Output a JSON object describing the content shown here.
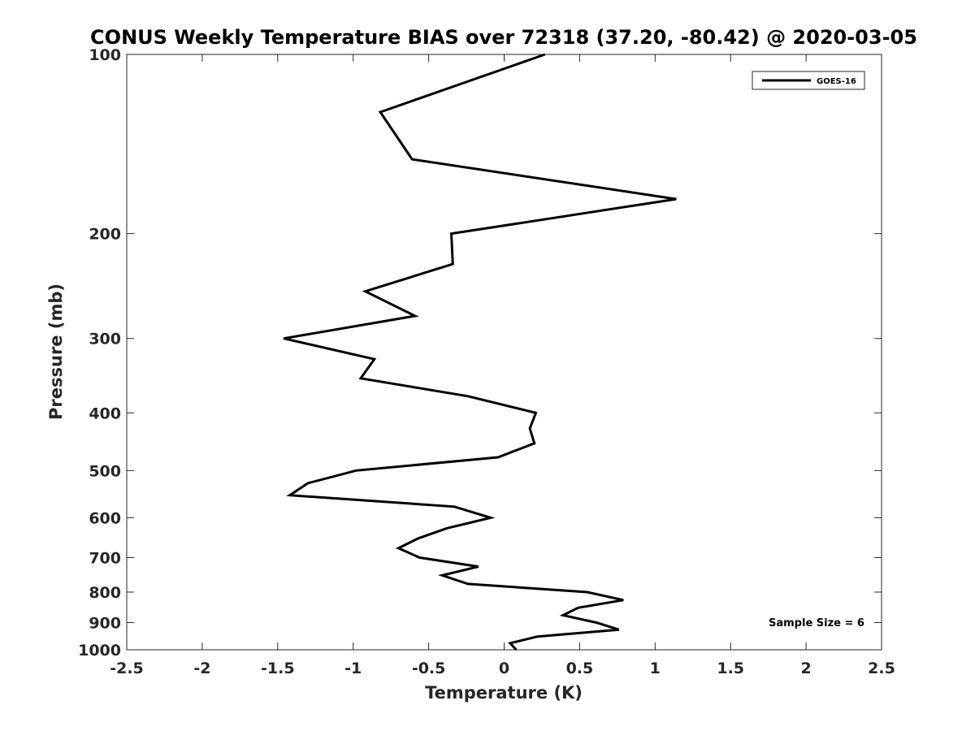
{
  "chart_data": {
    "type": "line",
    "title": "CONUS Weekly Temperature BIAS over 72318 (37.20, -80.42) @ 2020-03-05",
    "xlabel": "Temperature (K)",
    "ylabel": "Pressure (mb)",
    "xlim": [
      -2.5,
      2.5
    ],
    "ylim": [
      1000,
      100
    ],
    "yscale": "log",
    "xticks": [
      -2.5,
      -2,
      -1.5,
      -1,
      -0.5,
      0,
      0.5,
      1,
      1.5,
      2,
      2.5
    ],
    "xtick_labels": [
      "-2.5",
      "-2",
      "-1.5",
      "-1",
      "-0.5",
      "0",
      "0.5",
      "1",
      "1.5",
      "2",
      "2.5"
    ],
    "yticks": [
      100,
      200,
      300,
      400,
      500,
      600,
      700,
      800,
      900,
      1000
    ],
    "ytick_labels": [
      "100",
      "200",
      "300",
      "400",
      "500",
      "600",
      "700",
      "800",
      "900",
      "1000"
    ],
    "grid": false,
    "legend_position": "top-right",
    "series": [
      {
        "name": "GOES-16",
        "color": "#000000",
        "points": [
          {
            "x": 0.27,
            "p": 100
          },
          {
            "x": -0.82,
            "p": 125
          },
          {
            "x": -0.61,
            "p": 150
          },
          {
            "x": 1.14,
            "p": 175
          },
          {
            "x": -0.35,
            "p": 200
          },
          {
            "x": -0.34,
            "p": 225
          },
          {
            "x": -0.92,
            "p": 250
          },
          {
            "x": -0.59,
            "p": 275
          },
          {
            "x": -1.46,
            "p": 300
          },
          {
            "x": -0.86,
            "p": 325
          },
          {
            "x": -0.95,
            "p": 350
          },
          {
            "x": -0.24,
            "p": 375
          },
          {
            "x": 0.21,
            "p": 400
          },
          {
            "x": 0.17,
            "p": 425
          },
          {
            "x": 0.2,
            "p": 450
          },
          {
            "x": -0.04,
            "p": 475
          },
          {
            "x": -0.98,
            "p": 500
          },
          {
            "x": -1.3,
            "p": 525
          },
          {
            "x": -1.42,
            "p": 550
          },
          {
            "x": -0.33,
            "p": 575
          },
          {
            "x": -0.09,
            "p": 600
          },
          {
            "x": -0.38,
            "p": 625
          },
          {
            "x": -0.57,
            "p": 650
          },
          {
            "x": -0.7,
            "p": 675
          },
          {
            "x": -0.56,
            "p": 700
          },
          {
            "x": -0.17,
            "p": 725
          },
          {
            "x": -0.41,
            "p": 750
          },
          {
            "x": -0.24,
            "p": 775
          },
          {
            "x": 0.55,
            "p": 800
          },
          {
            "x": 0.79,
            "p": 825
          },
          {
            "x": 0.49,
            "p": 850
          },
          {
            "x": 0.39,
            "p": 875
          },
          {
            "x": 0.61,
            "p": 900
          },
          {
            "x": 0.76,
            "p": 925
          },
          {
            "x": 0.22,
            "p": 950
          },
          {
            "x": 0.04,
            "p": 975
          },
          {
            "x": 0.08,
            "p": 1000
          }
        ]
      }
    ],
    "annotations": [
      {
        "text": "Sample Size = 6"
      }
    ]
  }
}
